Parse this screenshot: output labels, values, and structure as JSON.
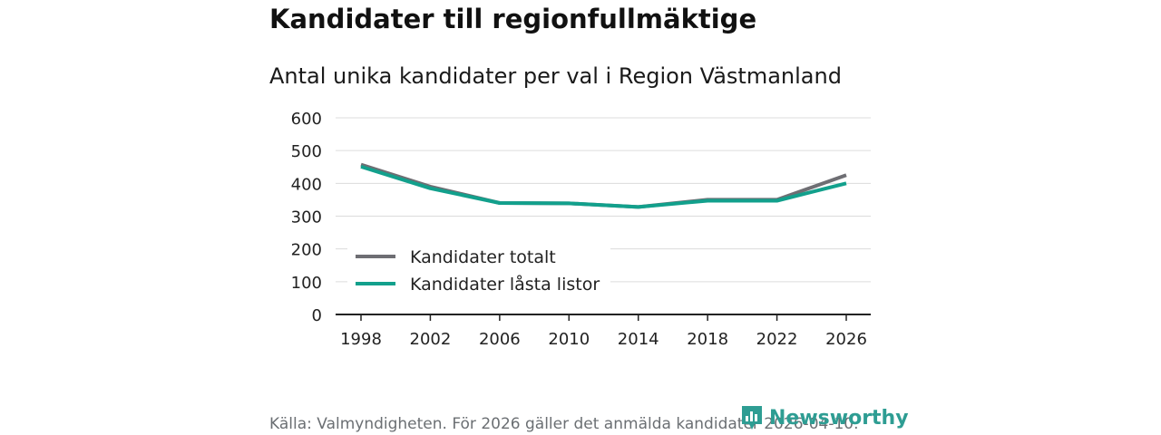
{
  "title": "Kandidater till regionfullmäktige",
  "subtitle": "Antal unika kandidater per val i Region Västmanland",
  "source": "Källa: Valmyndigheten. För 2026 gäller det anmälda kandidater 2026-04-10.",
  "logo": {
    "text": "Newsworthy"
  },
  "colors": {
    "total": "#6e6e73",
    "locked": "#12a08c",
    "grid": "#dcdcdc",
    "axis": "#222222",
    "brand": "#2e9d93"
  },
  "chart_data": {
    "type": "line",
    "x": [
      "1998",
      "2002",
      "2006",
      "2010",
      "2014",
      "2018",
      "2022",
      "2026"
    ],
    "series": [
      {
        "name": "Kandidater totalt",
        "values": [
          457,
          390,
          340,
          339,
          328,
          350,
          350,
          425
        ]
      },
      {
        "name": "Kandidater låsta listor",
        "values": [
          451,
          385,
          340,
          339,
          328,
          347,
          347,
          400
        ]
      }
    ],
    "yticks": [
      "0",
      "100",
      "200",
      "300",
      "400",
      "500",
      "600"
    ],
    "ylim": [
      0,
      600
    ],
    "legend_position": "bottom-left",
    "grid": true
  }
}
